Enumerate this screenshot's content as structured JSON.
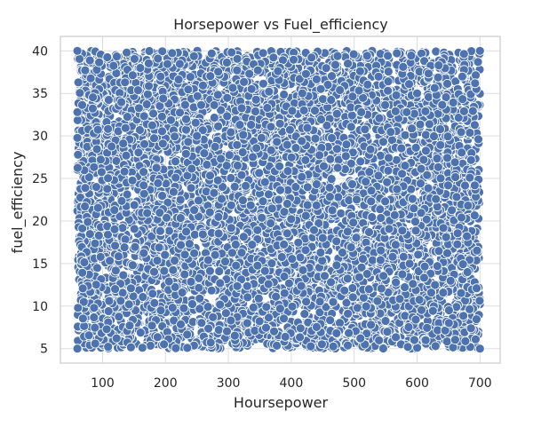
{
  "chart_data": {
    "type": "scatter",
    "title": "Horsepower vs Fuel_efficiency",
    "xlabel": "Hoursepower",
    "ylabel": "fuel_efficiency",
    "xlim": [
      33,
      732
    ],
    "ylim": [
      3.3,
      41.7
    ],
    "x_ticks": [
      100,
      200,
      300,
      400,
      500,
      600,
      700
    ],
    "y_ticks": [
      5,
      10,
      15,
      20,
      25,
      30,
      35,
      40
    ],
    "grid": true,
    "point_color": "#4c72b0",
    "point_edge_color": "#ffffff",
    "x_data_range": [
      60,
      700
    ],
    "y_data_range": [
      5,
      40
    ],
    "points": [
      [
        60,
        5
      ],
      [
        700,
        5
      ],
      [
        60,
        40
      ],
      [
        700,
        40
      ],
      [
        380,
        22.5
      ],
      [
        120,
        12
      ],
      [
        250,
        30
      ],
      [
        450,
        18
      ],
      [
        600,
        35
      ],
      [
        330,
        8
      ],
      [
        510,
        27
      ],
      [
        160,
        38
      ],
      [
        680,
        14
      ],
      [
        90,
        24
      ],
      [
        420,
        33
      ]
    ]
  }
}
